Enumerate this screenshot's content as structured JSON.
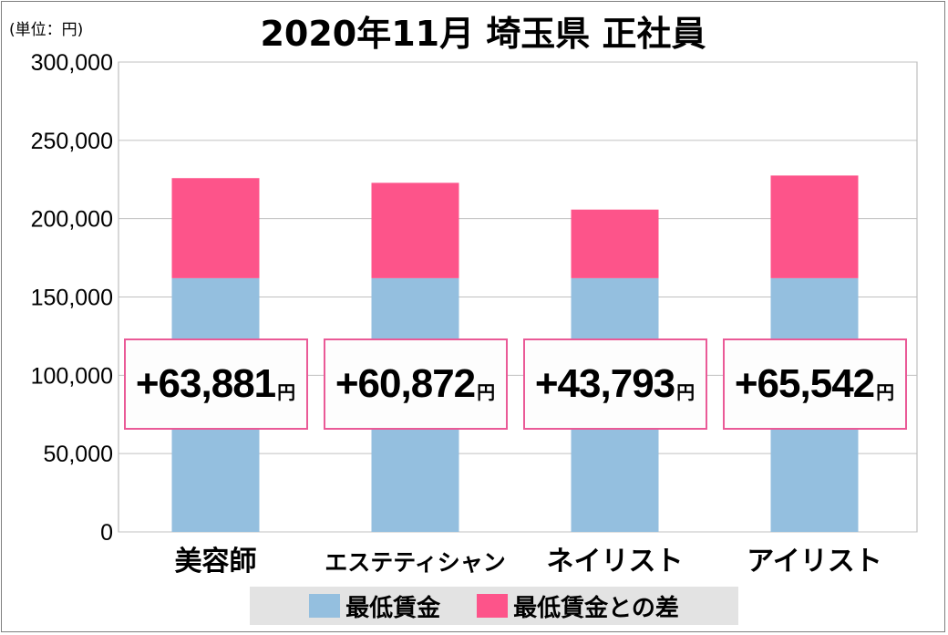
{
  "unit_note": "(単位：円)",
  "chart_data": {
    "type": "bar",
    "stacked": true,
    "title": "2020年11月 埼玉県 正社員",
    "categories": [
      "美容師",
      "エステティシャン",
      "ネイリスト",
      "アイリスト"
    ],
    "series": [
      {
        "name": "最低賃金",
        "color": "#94bfdf",
        "values": [
          162000,
          162000,
          162000,
          162000
        ]
      },
      {
        "name": "最低賃金との差",
        "color": "#fd548a",
        "values": [
          63881,
          60872,
          43793,
          65542
        ]
      }
    ],
    "difference_labels": [
      "+63,881",
      "+60,872",
      "+43,793",
      "+65,542"
    ],
    "difference_unit": "円",
    "ylim": [
      0,
      300000
    ],
    "yticks": [
      0,
      50000,
      100000,
      150000,
      200000,
      250000,
      300000
    ],
    "ytick_labels": [
      "0",
      "50,000",
      "100,000",
      "150,000",
      "200,000",
      "250,000",
      "300,000"
    ],
    "grid": true,
    "legend_position": "bottom"
  }
}
